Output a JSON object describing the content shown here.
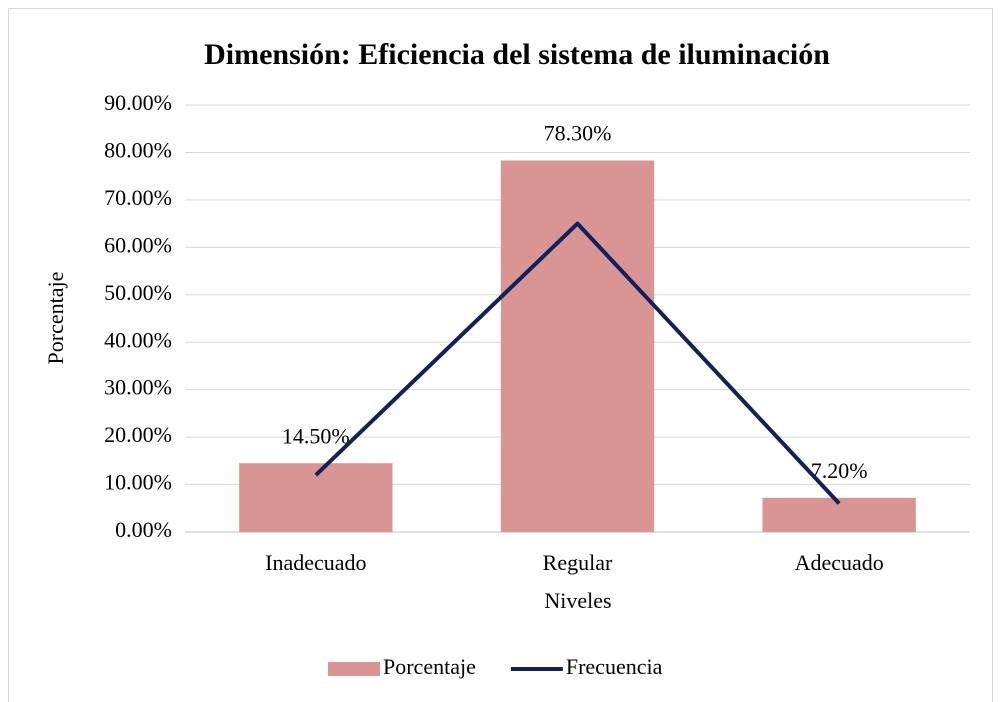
{
  "chart_data": {
    "type": "bar",
    "title": "Dimensión: Eficiencia del sistema de iluminación",
    "x_label": "Niveles",
    "y_label": "Porcentaje",
    "categories": [
      "Inadecuado",
      "Regular",
      "Adecuado"
    ],
    "series": [
      {
        "name": "Porcentaje",
        "type": "bar",
        "color": "#d99594",
        "values": [
          14.5,
          78.3,
          7.2
        ],
        "value_labels": [
          "14.50%",
          "78.30%",
          "7.20%"
        ]
      },
      {
        "name": "Frecuencia",
        "type": "line",
        "color": "#10215c",
        "values": [
          12,
          65,
          6
        ]
      }
    ],
    "ylim": [
      0,
      90
    ],
    "yticks": [
      {
        "value": 0,
        "label": "0.00%"
      },
      {
        "value": 10,
        "label": "10.00%"
      },
      {
        "value": 20,
        "label": "20.00%"
      },
      {
        "value": 30,
        "label": "30.00%"
      },
      {
        "value": 40,
        "label": "40.00%"
      },
      {
        "value": 50,
        "label": "50.00%"
      },
      {
        "value": 60,
        "label": "60.00%"
      },
      {
        "value": 70,
        "label": "70.00%"
      },
      {
        "value": 80,
        "label": "80.00%"
      },
      {
        "value": 90,
        "label": "90.00%"
      }
    ],
    "grid": true,
    "legend": "bottom"
  }
}
